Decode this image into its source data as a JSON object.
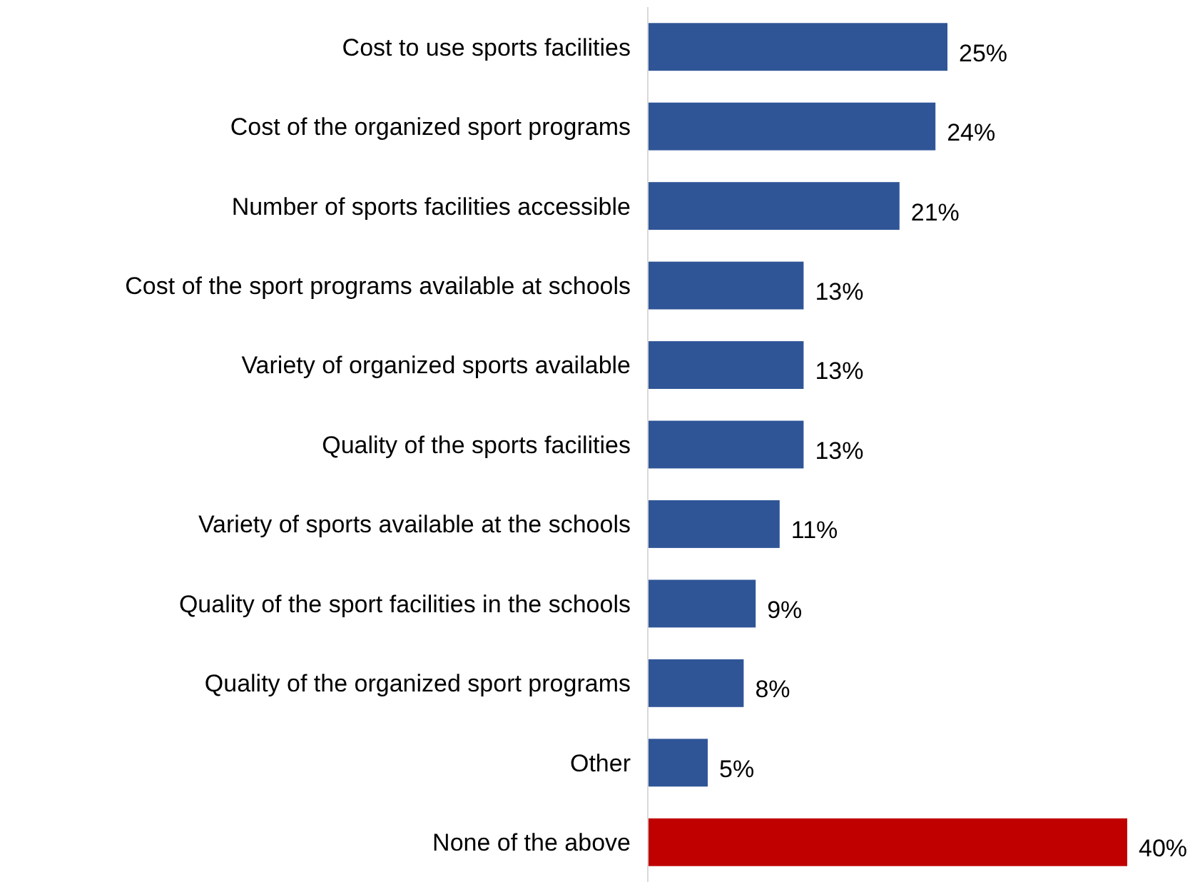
{
  "chart_data": {
    "type": "bar",
    "orientation": "horizontal",
    "categories": [
      "Cost to use sports facilities",
      "Cost of the organized sport programs",
      "Number of sports facilities accessible",
      "Cost of the sport programs available at schools",
      "Variety of organized sports available",
      "Quality of the sports facilities",
      "Variety of sports available at the schools",
      "Quality of the sport facilities in the schools",
      "Quality of the organized sport programs",
      "Other",
      "None of the above"
    ],
    "values": [
      25,
      24,
      21,
      13,
      13,
      13,
      11,
      9,
      8,
      5,
      40
    ],
    "value_labels": [
      "25%",
      "24%",
      "21%",
      "13%",
      "13%",
      "13%",
      "11%",
      "9%",
      "8%",
      "5%",
      "40%"
    ],
    "colors": [
      "#2f5597",
      "#2f5597",
      "#2f5597",
      "#2f5597",
      "#2f5597",
      "#2f5597",
      "#2f5597",
      "#2f5597",
      "#2f5597",
      "#2f5597",
      "#c00000"
    ]
  }
}
